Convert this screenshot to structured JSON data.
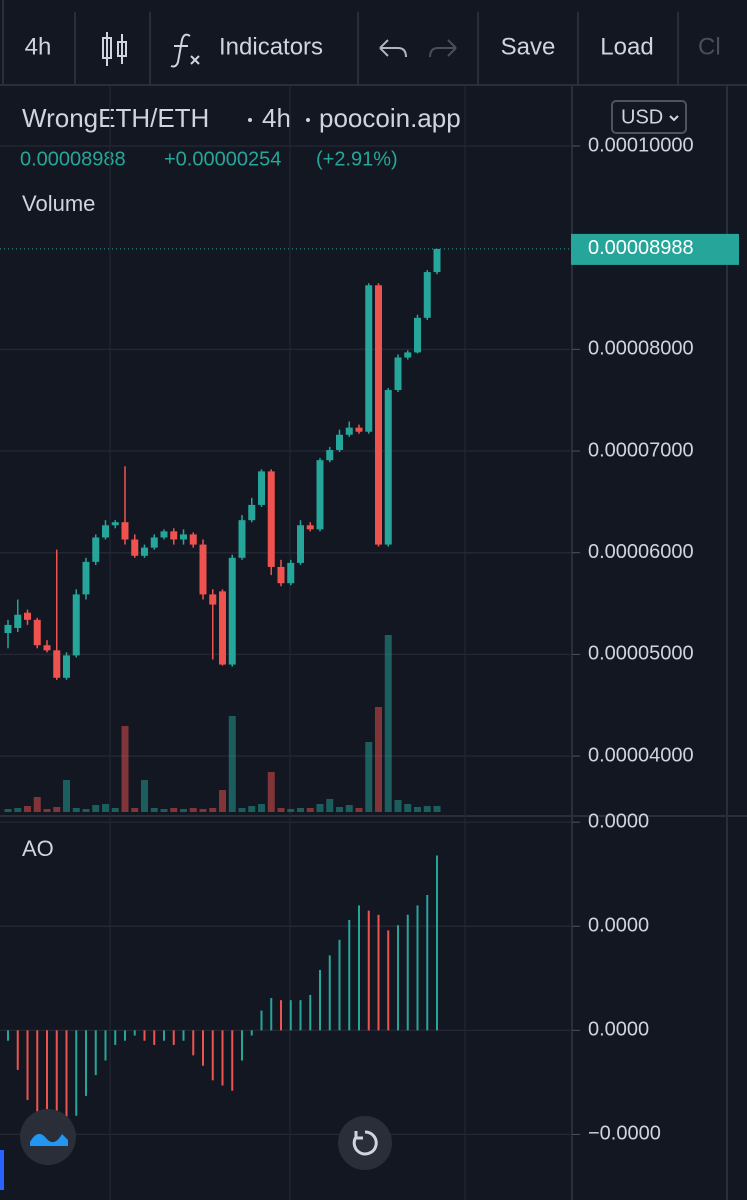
{
  "toolbar": {
    "interval": "4h",
    "indicators": "Indicators",
    "save": "Save",
    "load": "Load",
    "more": "Cl"
  },
  "legend": {
    "symbol": "WrongETH/ETH",
    "interval": "4h",
    "source": "poocoin.app",
    "currency": "USD",
    "last": "0.00008988",
    "change": "+0.00000254",
    "change_pct": "(+2.91%)"
  },
  "chart_data": [
    {
      "type": "candlestick",
      "up_color": "#26a69a",
      "down_color": "#ef5350",
      "grid": true,
      "ylim": [
        3.45e-05,
        0.0001059
      ],
      "yticks": [
        {
          "value": 0.0001,
          "label": "0.00010000"
        },
        {
          "value": 8e-05,
          "label": "0.00008000"
        },
        {
          "value": 7e-05,
          "label": "0.00007000"
        },
        {
          "value": 6e-05,
          "label": "0.00006000"
        },
        {
          "value": 5e-05,
          "label": "0.00005000"
        },
        {
          "value": 4e-05,
          "label": "0.00004000"
        }
      ],
      "open": [
        5.21e-05,
        5.26e-05,
        5.41e-05,
        5.34e-05,
        5.09e-05,
        5.04e-05,
        4.77e-05,
        4.99e-05,
        5.59e-05,
        5.91e-05,
        6.15e-05,
        6.27e-05,
        6.3e-05,
        6.13e-05,
        5.97e-05,
        6.05e-05,
        6.15e-05,
        6.21e-05,
        6.13e-05,
        6.18e-05,
        6.08e-05,
        5.59e-05,
        5.62e-05,
        4.9e-05,
        5.95e-05,
        6.32e-05,
        6.47e-05,
        6.8e-05,
        5.86e-05,
        5.7e-05,
        5.9e-05,
        6.27e-05,
        6.23e-05,
        6.91e-05,
        7.01e-05,
        7.16e-05,
        7.23e-05,
        7.19e-05,
        8.63e-05,
        6.08e-05,
        7.6e-05,
        7.92e-05,
        7.97e-05,
        8.31e-05,
        8.76e-05
      ],
      "high": [
        5.34e-05,
        5.54e-05,
        5.44e-05,
        5.36e-05,
        5.14e-05,
        6.03e-05,
        5.02e-05,
        5.64e-05,
        5.95e-05,
        6.18e-05,
        6.32e-05,
        6.32e-05,
        6.85e-05,
        6.18e-05,
        6.08e-05,
        6.18e-05,
        6.23e-05,
        6.24e-05,
        6.23e-05,
        6.2e-05,
        6.13e-05,
        5.64e-05,
        5.64e-05,
        5.98e-05,
        6.37e-05,
        6.54e-05,
        6.82e-05,
        6.82e-05,
        5.93e-05,
        5.93e-05,
        6.32e-05,
        6.3e-05,
        6.93e-05,
        7.04e-05,
        7.21e-05,
        7.29e-05,
        7.26e-05,
        8.65e-05,
        8.65e-05,
        7.62e-05,
        7.95e-05,
        7.99e-05,
        8.34e-05,
        8.78e-05,
        8.988e-05
      ],
      "low": [
        5.06e-05,
        5.22e-05,
        5.29e-05,
        5.06e-05,
        5.02e-05,
        4.75e-05,
        4.75e-05,
        4.97e-05,
        5.54e-05,
        5.88e-05,
        6.13e-05,
        6.24e-05,
        6.08e-05,
        5.95e-05,
        5.95e-05,
        6.03e-05,
        6.13e-05,
        6.08e-05,
        6.08e-05,
        6.05e-05,
        5.54e-05,
        4.95e-05,
        4.89e-05,
        4.88e-05,
        5.93e-05,
        6.3e-05,
        6.45e-05,
        5.78e-05,
        5.67e-05,
        5.68e-05,
        5.88e-05,
        6.21e-05,
        6.21e-05,
        6.89e-05,
        6.99e-05,
        7.14e-05,
        7.17e-05,
        7.17e-05,
        6.06e-05,
        6.06e-05,
        7.58e-05,
        7.9e-05,
        7.96e-05,
        8.29e-05,
        8.74e-05
      ],
      "close": [
        5.29e-05,
        5.39e-05,
        5.34e-05,
        5.09e-05,
        5.04e-05,
        4.77e-05,
        4.99e-05,
        5.59e-05,
        5.91e-05,
        6.15e-05,
        6.27e-05,
        6.3e-05,
        6.13e-05,
        5.97e-05,
        6.05e-05,
        6.15e-05,
        6.21e-05,
        6.13e-05,
        6.18e-05,
        6.08e-05,
        5.59e-05,
        5.49e-05,
        4.9e-05,
        5.95e-05,
        6.32e-05,
        6.47e-05,
        6.8e-05,
        5.86e-05,
        5.7e-05,
        5.9e-05,
        6.27e-05,
        6.23e-05,
        6.91e-05,
        7.01e-05,
        7.16e-05,
        7.23e-05,
        7.19e-05,
        8.63e-05,
        6.08e-05,
        7.6e-05,
        7.92e-05,
        7.97e-05,
        8.31e-05,
        8.76e-05,
        8.988e-05
      ]
    },
    {
      "type": "volume",
      "title": "Volume",
      "ylim": [
        0,
        726
      ],
      "values": [
        3,
        4,
        6,
        15,
        3,
        5,
        32,
        4,
        3,
        7,
        8,
        4,
        86,
        4,
        32,
        4,
        3,
        4,
        3,
        4,
        3,
        4,
        22,
        96,
        4,
        6,
        8,
        40,
        4,
        3,
        4,
        4,
        8,
        13,
        5,
        7,
        4,
        70,
        105,
        177,
        12,
        8,
        5,
        6,
        6
      ]
    },
    {
      "type": "oscillator",
      "title": "AO",
      "up_color": "#26a69a",
      "down_color": "#ef5350",
      "ylim": [
        -1.63e-05,
        2.04e-05
      ],
      "yticks": [
        {
          "value": 2e-05,
          "label": "0.0000"
        },
        {
          "value": 1e-05,
          "label": "0.0000"
        },
        {
          "value": 0,
          "label": "0.0000"
        },
        {
          "value": -1e-05,
          "label": "−0.0000"
        }
      ],
      "values": [
        -1e-06,
        -3.8e-06,
        -6.7e-06,
        -8.2e-06,
        -8.7e-06,
        -9.1e-06,
        -9.6e-06,
        -8.2e-06,
        -6.3e-06,
        -4.3e-06,
        -2.9e-06,
        -1.4e-06,
        -1e-06,
        -5e-07,
        -1e-06,
        -1.4e-06,
        -1e-06,
        -1.4e-06,
        -1e-06,
        -2.4e-06,
        -3.4e-06,
        -4.8e-06,
        -5.3e-06,
        -5.8e-06,
        -2.9e-06,
        -5e-07,
        1.9e-06,
        3.1e-06,
        2.9e-06,
        2.9e-06,
        2.9e-06,
        3.4e-06,
        5.8e-06,
        7.2e-06,
        8.7e-06,
        1.06e-05,
        1.2e-05,
        1.15e-05,
        1.11e-05,
        9.6e-06,
        1.01e-05,
        1.11e-05,
        1.2e-05,
        1.3e-05,
        1.68e-05
      ]
    }
  ]
}
